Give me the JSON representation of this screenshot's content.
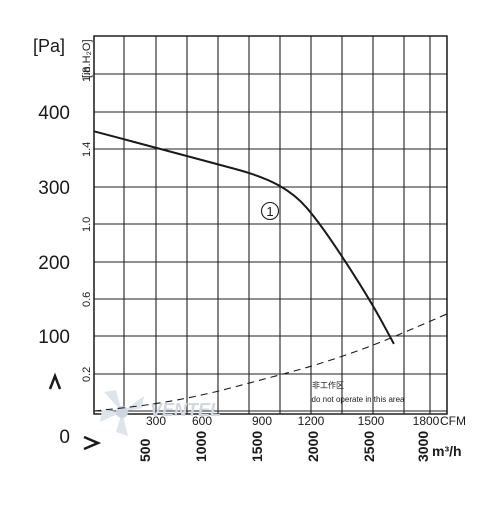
{
  "chart_data": {
    "type": "line",
    "title": "",
    "ylabel_pa": "[Pa]",
    "ylabel_inh2o": "[in.H2O]",
    "xlabel_cfm": "CFM",
    "xlabel_m3h": "m³/h",
    "ylim_pa": [
      0,
      450
    ],
    "xlim_m3h": [
      0,
      3150
    ],
    "y_ticks_pa": [
      "0",
      "100",
      "200",
      "300",
      "400"
    ],
    "y_ticks_inh2o": [
      "0.2",
      "0.6",
      "1.0",
      "1.4",
      "1.8"
    ],
    "x_ticks_cfm": [
      "300",
      "600",
      "900",
      "1200",
      "1500",
      "1800"
    ],
    "x_ticks_m3h": [
      "500",
      "1000",
      "1500",
      "2000",
      "2500",
      "3000"
    ],
    "curve_label": "①",
    "series": [
      {
        "label": "①",
        "style": "solid",
        "x": [
          0,
          500,
          1000,
          1500,
          1800,
          2000,
          2250,
          2500,
          2680
        ],
        "y": [
          375,
          355,
          335,
          315,
          290,
          255,
          200,
          140,
          90
        ]
      },
      {
        "style": "dashed",
        "x": [
          0,
          500,
          1000,
          1500,
          2000,
          2500,
          3000,
          3150
        ],
        "y": [
          0,
          8,
          22,
          42,
          62,
          88,
          120,
          130
        ]
      }
    ],
    "annotation_cn": "非工作区",
    "annotation_en": "do not operate in this area",
    "watermark": "VENTEL"
  }
}
